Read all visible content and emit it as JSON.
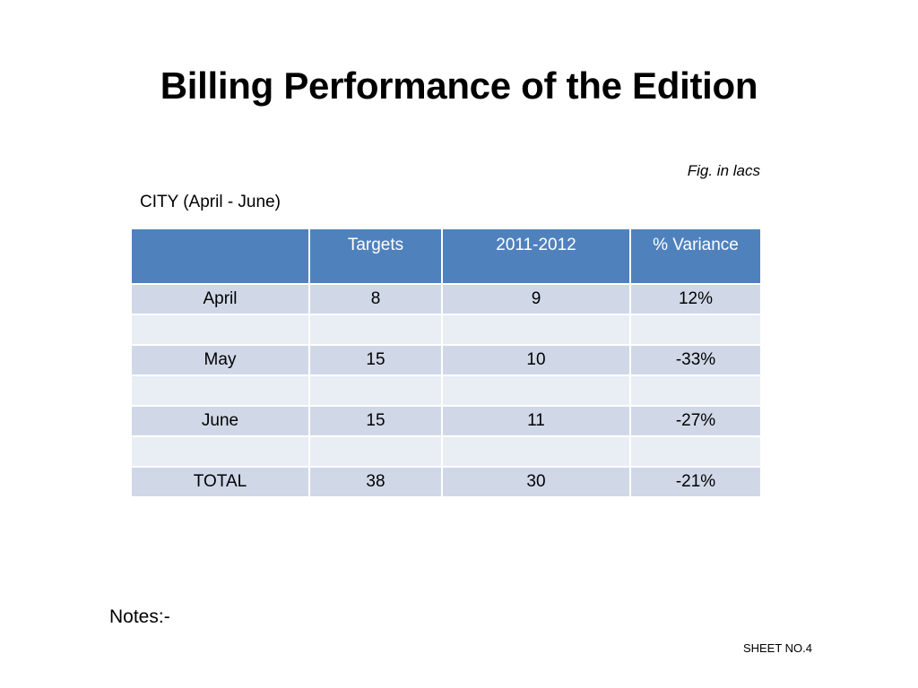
{
  "slide": {
    "title": "Billing Performance of the Edition",
    "unit_note": "Fig. in lacs",
    "section_label": "CITY (April - June)",
    "notes_label": "Notes:-",
    "sheet_number": "SHEET NO.4"
  },
  "table": {
    "headers": [
      "",
      "Targets",
      "2011-2012",
      "% Variance"
    ],
    "rows": [
      [
        "April",
        "8",
        "9",
        "12%"
      ],
      [
        "",
        "",
        "",
        ""
      ],
      [
        "May",
        "15",
        "10",
        "-33%"
      ],
      [
        "",
        "",
        "",
        ""
      ],
      [
        "June",
        "15",
        "11",
        "-27%"
      ],
      [
        "",
        "",
        "",
        ""
      ],
      [
        "TOTAL",
        "38",
        "30",
        "-21%"
      ]
    ]
  },
  "colors": {
    "header_fill": "#4f81bd",
    "band_dark": "#d0d8e8",
    "band_light": "#e9edf4"
  }
}
